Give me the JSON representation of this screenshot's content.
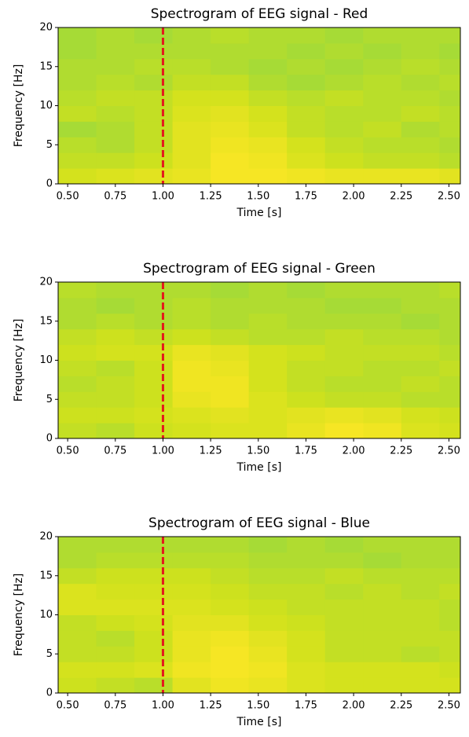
{
  "chart_data": [
    {
      "type": "heatmap",
      "title": "Spectrogram of EEG signal - Red",
      "xlabel": "Time [s]",
      "ylabel": "Frequency [Hz]",
      "x_edges": [
        0.45,
        0.65,
        0.85,
        1.05,
        1.25,
        1.45,
        1.65,
        1.85,
        2.05,
        2.25,
        2.45,
        2.56
      ],
      "y_edges": [
        0,
        2,
        4,
        6,
        8,
        10,
        12,
        14,
        16,
        18,
        20
      ],
      "z": [
        [
          0.7,
          0.75,
          0.8,
          0.85,
          0.95,
          0.95,
          0.9,
          0.85,
          0.85,
          0.85,
          0.8
        ],
        [
          0.6,
          0.6,
          0.65,
          0.8,
          0.95,
          0.9,
          0.75,
          0.65,
          0.6,
          0.6,
          0.55
        ],
        [
          0.55,
          0.5,
          0.6,
          0.8,
          0.9,
          0.85,
          0.7,
          0.6,
          0.55,
          0.55,
          0.5
        ],
        [
          0.45,
          0.5,
          0.6,
          0.8,
          0.85,
          0.75,
          0.6,
          0.55,
          0.6,
          0.5,
          0.55
        ],
        [
          0.6,
          0.55,
          0.6,
          0.75,
          0.8,
          0.7,
          0.6,
          0.55,
          0.55,
          0.6,
          0.55
        ],
        [
          0.55,
          0.6,
          0.6,
          0.7,
          0.7,
          0.6,
          0.55,
          0.6,
          0.55,
          0.55,
          0.5
        ],
        [
          0.5,
          0.55,
          0.5,
          0.6,
          0.6,
          0.5,
          0.45,
          0.5,
          0.55,
          0.5,
          0.55
        ],
        [
          0.5,
          0.5,
          0.55,
          0.55,
          0.5,
          0.45,
          0.5,
          0.45,
          0.5,
          0.55,
          0.5
        ],
        [
          0.45,
          0.5,
          0.5,
          0.5,
          0.5,
          0.5,
          0.45,
          0.5,
          0.45,
          0.5,
          0.45
        ],
        [
          0.45,
          0.5,
          0.45,
          0.5,
          0.55,
          0.5,
          0.5,
          0.45,
          0.5,
          0.5,
          0.5
        ]
      ],
      "zlim": [
        0,
        1
      ],
      "colormap": [
        "#35b779",
        "#8fd744",
        "#d0e11c",
        "#fde725"
      ],
      "vline": 1.0,
      "vline_color": "#e31a1c",
      "xlim": [
        0.45,
        2.56
      ],
      "ylim": [
        0,
        20
      ],
      "xticks": [
        {
          "value": 0.5,
          "label": "0.50"
        },
        {
          "value": 0.75,
          "label": "0.75"
        },
        {
          "value": 1.0,
          "label": "1.00"
        },
        {
          "value": 1.25,
          "label": "1.25"
        },
        {
          "value": 1.5,
          "label": "1.50"
        },
        {
          "value": 1.75,
          "label": "1.75"
        },
        {
          "value": 2.0,
          "label": "2.00"
        },
        {
          "value": 2.25,
          "label": "2.25"
        },
        {
          "value": 2.5,
          "label": "2.50"
        }
      ],
      "yticks": [
        0,
        5,
        10,
        15,
        20
      ]
    },
    {
      "type": "heatmap",
      "title": "Spectrogram of EEG signal - Green",
      "xlabel": "Time [s]",
      "ylabel": "Frequency [Hz]",
      "x_edges": [
        0.45,
        0.65,
        0.85,
        1.05,
        1.25,
        1.45,
        1.65,
        1.85,
        2.05,
        2.25,
        2.45,
        2.56
      ],
      "y_edges": [
        0,
        2,
        4,
        6,
        8,
        10,
        12,
        14,
        16,
        18,
        20
      ],
      "z": [
        [
          0.6,
          0.55,
          0.65,
          0.7,
          0.75,
          0.75,
          0.85,
          0.95,
          0.9,
          0.75,
          0.7
        ],
        [
          0.65,
          0.65,
          0.7,
          0.75,
          0.8,
          0.75,
          0.8,
          0.85,
          0.8,
          0.7,
          0.65
        ],
        [
          0.6,
          0.6,
          0.65,
          0.85,
          0.9,
          0.75,
          0.65,
          0.6,
          0.6,
          0.55,
          0.55
        ],
        [
          0.55,
          0.6,
          0.65,
          0.9,
          0.9,
          0.7,
          0.6,
          0.55,
          0.55,
          0.6,
          0.55
        ],
        [
          0.6,
          0.55,
          0.65,
          0.9,
          0.85,
          0.7,
          0.6,
          0.6,
          0.55,
          0.55,
          0.6
        ],
        [
          0.65,
          0.7,
          0.7,
          0.85,
          0.8,
          0.7,
          0.65,
          0.6,
          0.6,
          0.6,
          0.55
        ],
        [
          0.6,
          0.65,
          0.6,
          0.65,
          0.6,
          0.55,
          0.55,
          0.6,
          0.55,
          0.55,
          0.5
        ],
        [
          0.5,
          0.55,
          0.5,
          0.55,
          0.5,
          0.55,
          0.5,
          0.5,
          0.5,
          0.45,
          0.5
        ],
        [
          0.5,
          0.45,
          0.5,
          0.55,
          0.5,
          0.5,
          0.5,
          0.45,
          0.45,
          0.5,
          0.5
        ],
        [
          0.55,
          0.5,
          0.5,
          0.5,
          0.45,
          0.5,
          0.45,
          0.5,
          0.5,
          0.5,
          0.55
        ]
      ],
      "zlim": [
        0,
        1
      ],
      "colormap": [
        "#35b779",
        "#8fd744",
        "#d0e11c",
        "#fde725"
      ],
      "vline": 1.0,
      "vline_color": "#e31a1c",
      "xlim": [
        0.45,
        2.56
      ],
      "ylim": [
        0,
        20
      ],
      "xticks": [
        {
          "value": 0.5,
          "label": "0.50"
        },
        {
          "value": 0.75,
          "label": "0.75"
        },
        {
          "value": 1.0,
          "label": "1.00"
        },
        {
          "value": 1.25,
          "label": "1.25"
        },
        {
          "value": 1.5,
          "label": "1.50"
        },
        {
          "value": 1.75,
          "label": "1.75"
        },
        {
          "value": 2.0,
          "label": "2.00"
        },
        {
          "value": 2.25,
          "label": "2.25"
        },
        {
          "value": 2.5,
          "label": "2.50"
        }
      ],
      "yticks": [
        0,
        5,
        10,
        15,
        20
      ]
    },
    {
      "type": "heatmap",
      "title": "Spectrogram of EEG signal - Blue",
      "xlabel": "Time [s]",
      "ylabel": "Frequency [Hz]",
      "x_edges": [
        0.45,
        0.65,
        0.85,
        1.05,
        1.25,
        1.45,
        1.65,
        1.85,
        2.05,
        2.25,
        2.45,
        2.56
      ],
      "y_edges": [
        0,
        2,
        4,
        6,
        8,
        10,
        12,
        14,
        16,
        18,
        20
      ],
      "z": [
        [
          0.65,
          0.6,
          0.55,
          0.8,
          0.9,
          0.85,
          0.75,
          0.7,
          0.7,
          0.7,
          0.7
        ],
        [
          0.7,
          0.7,
          0.75,
          0.9,
          0.95,
          0.9,
          0.75,
          0.7,
          0.7,
          0.7,
          0.65
        ],
        [
          0.6,
          0.6,
          0.65,
          0.85,
          0.95,
          0.85,
          0.7,
          0.6,
          0.6,
          0.55,
          0.6
        ],
        [
          0.6,
          0.55,
          0.65,
          0.85,
          0.9,
          0.8,
          0.7,
          0.6,
          0.6,
          0.6,
          0.6
        ],
        [
          0.6,
          0.65,
          0.7,
          0.8,
          0.8,
          0.7,
          0.65,
          0.6,
          0.6,
          0.6,
          0.55
        ],
        [
          0.75,
          0.75,
          0.75,
          0.75,
          0.7,
          0.65,
          0.6,
          0.6,
          0.6,
          0.6,
          0.55
        ],
        [
          0.75,
          0.7,
          0.7,
          0.7,
          0.65,
          0.6,
          0.6,
          0.55,
          0.6,
          0.55,
          0.6
        ],
        [
          0.6,
          0.65,
          0.65,
          0.65,
          0.6,
          0.55,
          0.55,
          0.6,
          0.55,
          0.55,
          0.55
        ],
        [
          0.5,
          0.55,
          0.55,
          0.55,
          0.55,
          0.5,
          0.5,
          0.5,
          0.45,
          0.5,
          0.5
        ],
        [
          0.5,
          0.5,
          0.5,
          0.5,
          0.5,
          0.45,
          0.5,
          0.45,
          0.5,
          0.5,
          0.5
        ]
      ],
      "zlim": [
        0,
        1
      ],
      "colormap": [
        "#35b779",
        "#8fd744",
        "#d0e11c",
        "#fde725"
      ],
      "vline": 1.0,
      "vline_color": "#e31a1c",
      "xlim": [
        0.45,
        2.56
      ],
      "ylim": [
        0,
        20
      ],
      "xticks": [
        {
          "value": 0.5,
          "label": "0.50"
        },
        {
          "value": 0.75,
          "label": "0.75"
        },
        {
          "value": 1.0,
          "label": "1.00"
        },
        {
          "value": 1.25,
          "label": "1.25"
        },
        {
          "value": 1.5,
          "label": "1.50"
        },
        {
          "value": 1.75,
          "label": "1.75"
        },
        {
          "value": 2.0,
          "label": "2.00"
        },
        {
          "value": 2.25,
          "label": "2.25"
        },
        {
          "value": 2.5,
          "label": "2.50"
        }
      ],
      "yticks": [
        0,
        5,
        10,
        15,
        20
      ]
    }
  ]
}
